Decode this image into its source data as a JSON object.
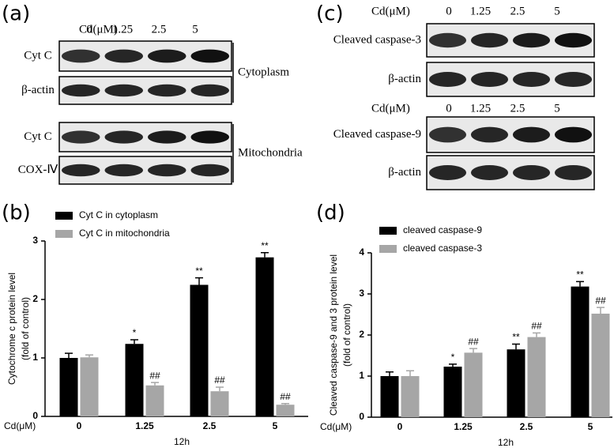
{
  "blots": [
    {
      "panel": "(a)",
      "groups": [
        {
          "dose_label": "Cd(μM)",
          "doses": [
            "0",
            "1.25",
            "2.5",
            "5"
          ],
          "rows": [
            "Cyt C",
            "β-actin"
          ],
          "fraction": "Cytoplasm"
        },
        {
          "rows": [
            "Cyt C",
            "COX-Ⅳ"
          ],
          "fraction": "Mitochondria"
        }
      ]
    },
    {
      "panel": "(c)",
      "groups": [
        {
          "dose_label": "Cd(μM)",
          "doses": [
            "0",
            "1.25",
            "2.5",
            "5"
          ],
          "rows": [
            "Cleaved caspase-3",
            "β-actin"
          ]
        },
        {
          "dose_label": "Cd(μM)",
          "doses": [
            "0",
            "1.25",
            "2.5",
            "5"
          ],
          "rows": [
            "Cleaved caspase-9",
            "β-actin"
          ]
        }
      ]
    }
  ],
  "chart_data": [
    {
      "type": "bar",
      "panel": "(b)",
      "x_prefix": "Cd(μM)",
      "xlabel": "12h",
      "ylabel": [
        "Cytochrome c protein level",
        "(fold of control)"
      ],
      "categories": [
        "0",
        "1.25",
        "2.5",
        "5"
      ],
      "ylim": [
        0,
        3
      ],
      "yticks": [
        0,
        1,
        2,
        3
      ],
      "series": [
        {
          "name": "Cyt C in cytoplasm",
          "color": "#000000",
          "values": [
            1.0,
            1.24,
            2.25,
            2.72
          ],
          "errors": [
            0.08,
            0.07,
            0.12,
            0.08
          ],
          "annotations": [
            null,
            "*",
            "**",
            "**"
          ]
        },
        {
          "name": "Cyt C in mitochondria",
          "color": "#a6a6a6",
          "values": [
            1.01,
            0.53,
            0.43,
            0.2
          ],
          "errors": [
            0.04,
            0.05,
            0.07,
            0.02
          ],
          "annotations": [
            null,
            "##",
            "##",
            "##"
          ]
        }
      ]
    },
    {
      "type": "bar",
      "panel": "(d)",
      "x_prefix": "Cd(μM)",
      "xlabel": "12h",
      "ylabel": [
        "Cleaved caspase-9 and 3 protein level",
        "(fold of control)"
      ],
      "categories": [
        "0",
        "1.25",
        "2.5",
        "5"
      ],
      "ylim": [
        0,
        4
      ],
      "yticks": [
        0,
        1,
        2,
        3,
        4
      ],
      "series": [
        {
          "name": "cleaved caspase-9",
          "color": "#000000",
          "values": [
            1.0,
            1.23,
            1.65,
            3.18
          ],
          "errors": [
            0.1,
            0.06,
            0.13,
            0.12
          ],
          "annotations": [
            null,
            "*",
            "**",
            "**"
          ]
        },
        {
          "name": "cleaved caspase-3",
          "color": "#a6a6a6",
          "values": [
            1.0,
            1.57,
            1.95,
            2.52
          ],
          "errors": [
            0.13,
            0.1,
            0.1,
            0.15
          ],
          "annotations": [
            null,
            "##",
            "##",
            "##"
          ]
        }
      ]
    }
  ]
}
